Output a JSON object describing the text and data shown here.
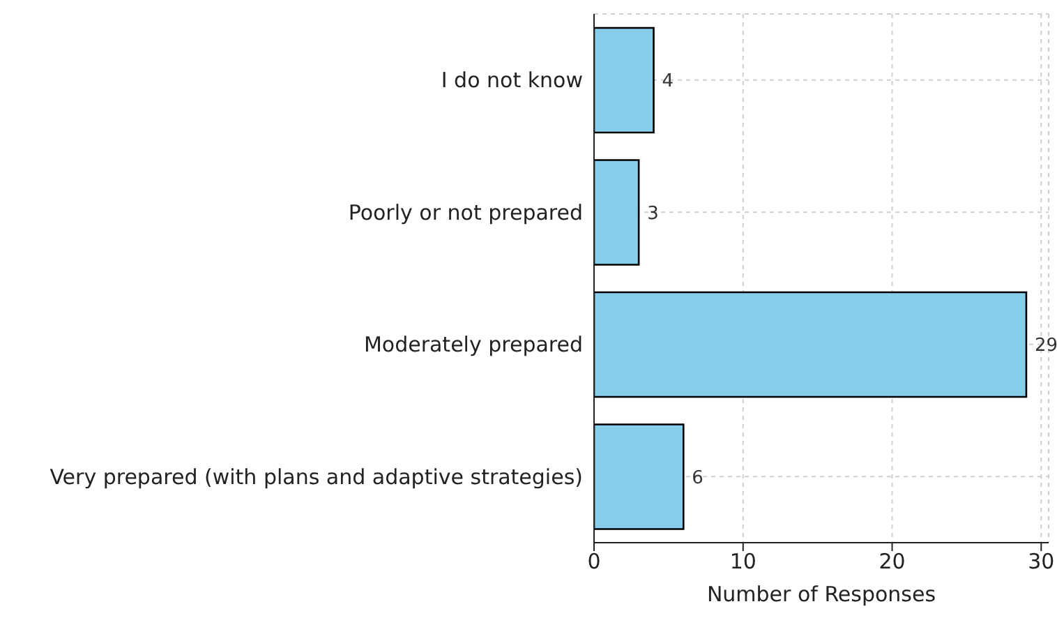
{
  "chart_data": {
    "type": "bar",
    "orientation": "horizontal",
    "categories": [
      "I do not know",
      "Poorly or not prepared",
      "Moderately prepared",
      "Very prepared (with plans and adaptive strategies)"
    ],
    "values": [
      4,
      3,
      29,
      6
    ],
    "color": "#87ceeb",
    "xlabel": "Number of Responses",
    "xlim": [
      0,
      30.5
    ],
    "xticks": [
      0,
      10,
      20,
      30
    ],
    "grid": true,
    "data_labels": true
  }
}
